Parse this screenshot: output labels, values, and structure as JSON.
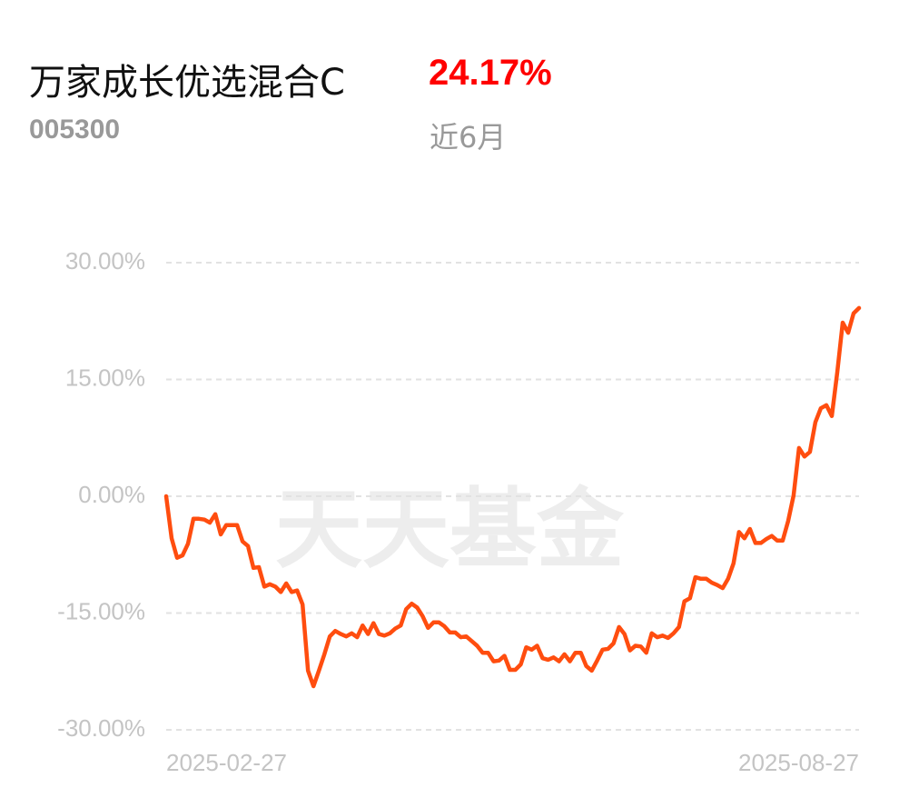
{
  "header": {
    "title": "万家成长优选混合C",
    "return": "24.17%",
    "code": "005300",
    "period": "近6月"
  },
  "watermark": "天天基金",
  "chart_data": {
    "type": "line",
    "ylim": [
      -30,
      30
    ],
    "yticks": [
      {
        "value": 30,
        "label": "30.00%"
      },
      {
        "value": 15,
        "label": "15.00%"
      },
      {
        "value": 0,
        "label": "0.00%"
      },
      {
        "value": -15,
        "label": "-15.00%"
      },
      {
        "value": -30,
        "label": "-30.00%"
      }
    ],
    "grid": true,
    "categories": [
      "2025-02-27",
      null,
      null,
      null,
      null,
      null,
      null,
      null,
      null,
      null,
      null,
      null,
      null,
      null,
      null,
      null,
      null,
      null,
      null,
      null,
      null,
      null,
      null,
      null,
      null,
      null,
      null,
      null,
      null,
      null,
      null,
      null,
      null,
      null,
      null,
      null,
      null,
      null,
      null,
      null,
      null,
      null,
      null,
      null,
      null,
      null,
      null,
      null,
      null,
      null,
      null,
      null,
      null,
      null,
      null,
      null,
      null,
      null,
      null,
      null,
      null,
      null,
      null,
      null,
      null,
      null,
      null,
      null,
      null,
      null,
      null,
      null,
      null,
      null,
      null,
      null,
      null,
      null,
      null,
      null,
      null,
      null,
      null,
      null,
      null,
      null,
      null,
      null,
      null,
      null,
      null,
      null,
      null,
      null,
      null,
      null,
      null,
      null,
      null,
      null,
      null,
      null,
      null,
      null,
      null,
      null,
      null,
      null,
      null,
      null,
      null,
      null,
      null,
      null,
      null,
      null,
      null,
      null,
      null,
      null,
      null,
      null,
      null,
      null,
      null,
      null,
      null,
      "2025-08-27"
    ],
    "series": [
      {
        "color": "#ff4d0f",
        "values": [
          0,
          -5.4,
          -7.9,
          -7.6,
          -6.1,
          -2.9,
          -2.9,
          -3.0,
          -3.4,
          -2.3,
          -4.9,
          -3.7,
          -3.7,
          -3.7,
          -5.8,
          -6.4,
          -9.2,
          -9.1,
          -11.6,
          -11.3,
          -11.6,
          -12.3,
          -11.2,
          -12.3,
          -12.1,
          -13.9,
          -22.4,
          -24.4,
          -22.4,
          -20.3,
          -18.0,
          -17.3,
          -17.7,
          -18.0,
          -17.6,
          -18.1,
          -16.6,
          -17.7,
          -16.3,
          -17.7,
          -17.9,
          -17.6,
          -17.0,
          -16.6,
          -14.5,
          -13.8,
          -14.3,
          -15.4,
          -16.9,
          -16.2,
          -16.2,
          -16.7,
          -17.5,
          -17.5,
          -18.1,
          -18.0,
          -18.6,
          -19.2,
          -20.1,
          -20.1,
          -21.2,
          -21.1,
          -20.5,
          -22.3,
          -22.3,
          -21.6,
          -19.4,
          -19.7,
          -19.2,
          -20.8,
          -21.0,
          -20.7,
          -21.2,
          -20.3,
          -21.2,
          -20.1,
          -20.1,
          -21.8,
          -22.4,
          -21.1,
          -19.7,
          -19.6,
          -18.9,
          -16.8,
          -17.7,
          -19.8,
          -19.2,
          -19.3,
          -20.1,
          -17.6,
          -18.1,
          -17.9,
          -18.2,
          -17.6,
          -16.8,
          -13.5,
          -13.1,
          -10.4,
          -10.6,
          -10.6,
          -11.1,
          -11.4,
          -11.8,
          -10.6,
          -8.6,
          -4.6,
          -5.4,
          -4.2,
          -6.0,
          -6.0,
          -5.5,
          -5.1,
          -5.7,
          -5.7,
          -3.2,
          0.1,
          6.2,
          5.1,
          5.7,
          9.5,
          11.3,
          11.7,
          10.3,
          15.9,
          22.3,
          21.0,
          23.5,
          24.17
        ]
      }
    ]
  }
}
